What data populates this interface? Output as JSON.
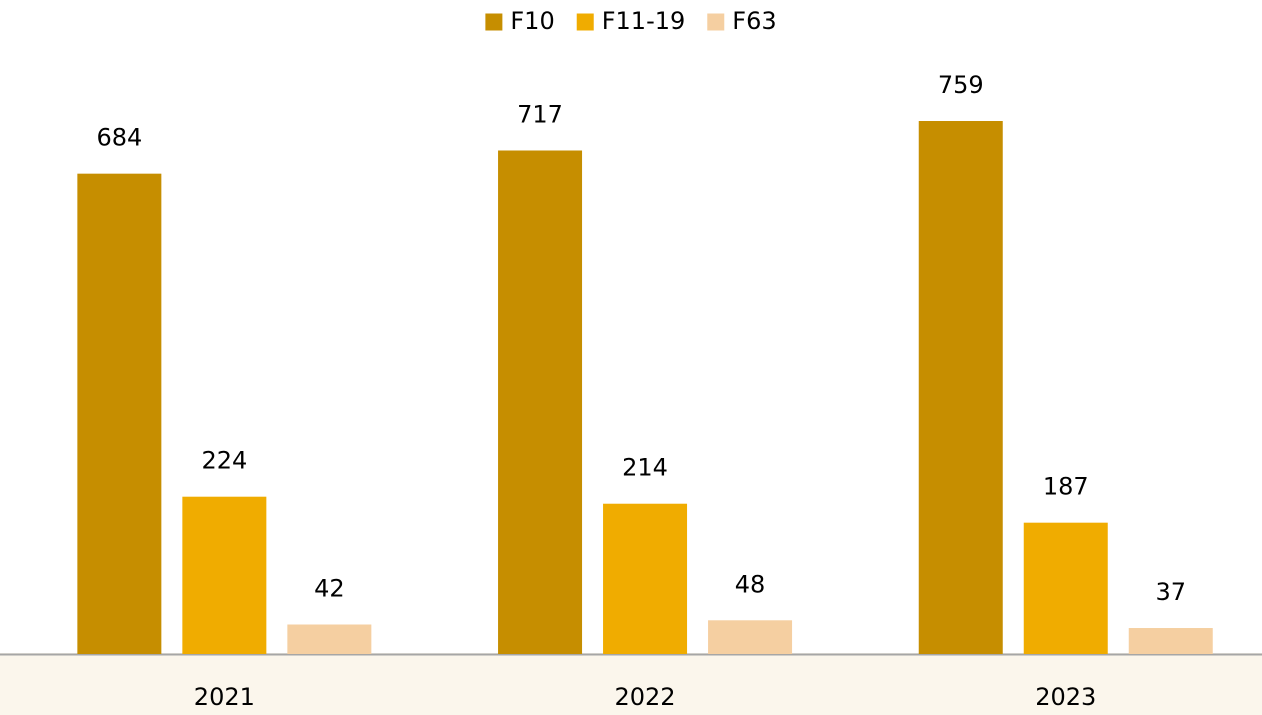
{
  "chart_data": {
    "type": "bar",
    "categories": [
      "2021",
      "2022",
      "2023"
    ],
    "series": [
      {
        "name": "F10",
        "color": "#c68e00",
        "values": [
          684,
          717,
          759
        ]
      },
      {
        "name": "F11-19",
        "color": "#f0ac00",
        "values": [
          224,
          214,
          187
        ]
      },
      {
        "name": "F63",
        "color": "#f5cfa1",
        "values": [
          42,
          48,
          37
        ]
      }
    ],
    "legend": "top"
  }
}
